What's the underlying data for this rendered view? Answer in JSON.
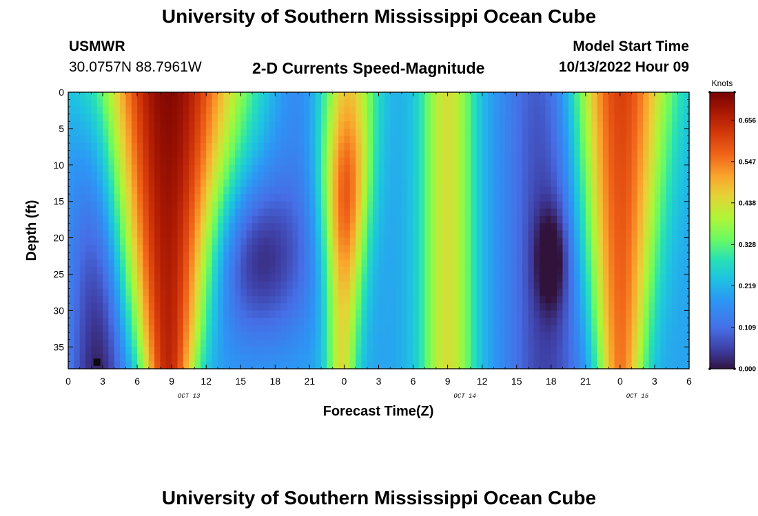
{
  "page": {
    "title": "University of Southern Mississippi Ocean Cube",
    "station": "USMWR",
    "coords": "30.0757N  88.7961W",
    "subtitle": "2-D Currents Speed-Magnitude",
    "model_label": "Model Start Time",
    "model_time": "10/13/2022 Hour 09",
    "second_title": "University of Southern Mississippi Ocean Cube"
  },
  "chart_data": {
    "type": "heatmap",
    "title": "2-D Currents Speed-Magnitude",
    "xlabel": "Forecast Time(Z)",
    "ylabel": "Depth (ft)",
    "x_unit": "hours since Oct 13 00Z",
    "xlim": [
      0,
      54
    ],
    "ylim": [
      0,
      38
    ],
    "x_tick_hours": [
      0,
      3,
      6,
      9,
      12,
      15,
      18,
      21,
      24,
      27,
      30,
      33,
      36,
      39,
      42,
      45,
      48,
      51,
      54
    ],
    "x_tick_labels": [
      "0",
      "3",
      "6",
      "9",
      "12",
      "15",
      "18",
      "21",
      "0",
      "3",
      "6",
      "9",
      "12",
      "15",
      "18",
      "21",
      "0",
      "3",
      "6"
    ],
    "y_ticks": [
      0,
      5,
      10,
      15,
      20,
      25,
      30,
      35
    ],
    "y_tick_labels": [
      "0",
      "5",
      "10",
      "15",
      "20",
      "25",
      "30",
      "35"
    ],
    "date_labels": [
      {
        "label": "OCT 13",
        "hour": 10.5
      },
      {
        "label": "OCT 14",
        "hour": 34.5
      },
      {
        "label": "OCT 15",
        "hour": 49.5
      }
    ],
    "colorbar": {
      "title": "Knots",
      "min": 0.0,
      "max": 0.73,
      "tick_values": [
        0.0,
        0.109,
        0.219,
        0.328,
        0.438,
        0.547,
        0.656
      ],
      "tick_labels": [
        "0.000",
        "0.109",
        "0.219",
        "0.328",
        "0.438",
        "0.547",
        "0.656"
      ]
    },
    "time_profile_peaks": [
      {
        "hour": 8.7,
        "surface_knots": 0.7,
        "note": "broad peak narrowing with depth"
      },
      {
        "hour": 24.3,
        "surface_knots": 0.45,
        "note": "peak near 14 ft depth"
      },
      {
        "hour": 33.0,
        "surface_knots": 0.45
      },
      {
        "hour": 48.0,
        "surface_knots": 0.6,
        "note": "peak narrowing with depth"
      }
    ],
    "minima": [
      {
        "hour": 2.5,
        "depth_ft": 37,
        "knots": 0.0
      },
      {
        "hour": 16.5,
        "depth_ft": 23,
        "knots": 0.07
      },
      {
        "hour": 42.0,
        "depth_ft": 23,
        "knots": 0.02
      }
    ]
  }
}
